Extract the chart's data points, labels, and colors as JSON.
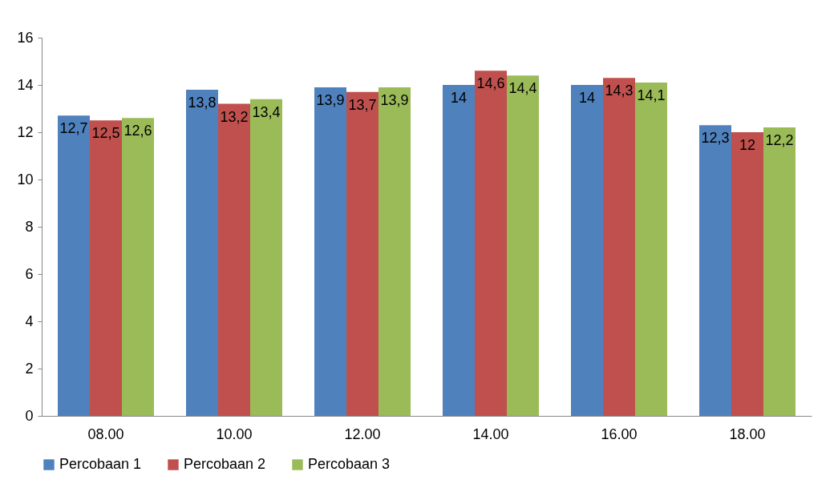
{
  "chart_data": {
    "type": "bar",
    "categories": [
      "08.00",
      "10.00",
      "12.00",
      "14.00",
      "16.00",
      "18.00"
    ],
    "series": [
      {
        "name": "Percobaan 1",
        "color": "#4f81bd",
        "values": [
          12.7,
          13.8,
          13.9,
          14,
          14,
          12.3
        ],
        "value_labels": [
          "12,7",
          "13,8",
          "13,9",
          "14",
          "14",
          "12,3"
        ]
      },
      {
        "name": "Percobaan 2",
        "color": "#c0504d",
        "values": [
          12.5,
          13.2,
          13.7,
          14.6,
          14.3,
          12
        ],
        "value_labels": [
          "12,5",
          "13,2",
          "13,7",
          "14,6",
          "14,3",
          "12"
        ]
      },
      {
        "name": "Percobaan 3",
        "color": "#9bbb59",
        "values": [
          12.6,
          13.4,
          13.9,
          14.4,
          14.1,
          12.2
        ],
        "value_labels": [
          "12,6",
          "13,4",
          "13,9",
          "14,4",
          "14,1",
          "12,2"
        ]
      }
    ],
    "ylim": [
      0,
      16
    ],
    "yticks": [
      0,
      2,
      4,
      6,
      8,
      10,
      12,
      14,
      16
    ],
    "grid": false,
    "legend": "bottom"
  }
}
